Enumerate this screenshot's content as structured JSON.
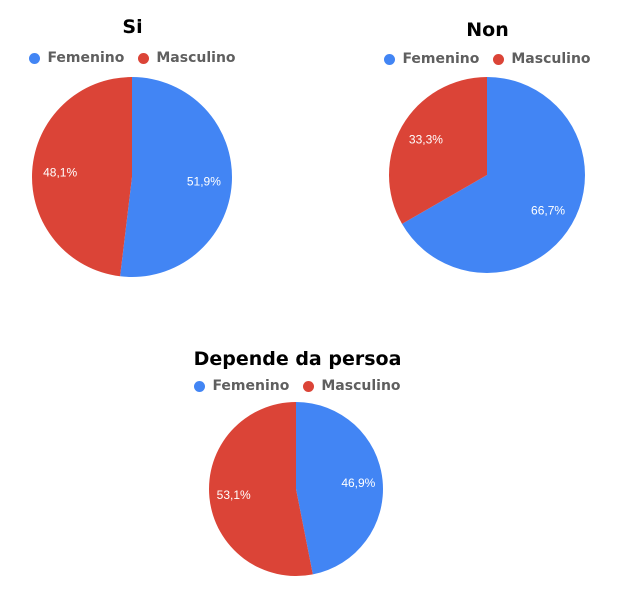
{
  "chart_data": [
    {
      "type": "pie",
      "title": "Si",
      "categories": [
        "Femenino",
        "Masculino"
      ],
      "values": [
        51.9,
        48.1
      ],
      "labels": [
        "51,9%",
        "48,1%"
      ],
      "colors": [
        "#4285f4",
        "#db4437"
      ],
      "legend": "top"
    },
    {
      "type": "pie",
      "title": "Non",
      "categories": [
        "Femenino",
        "Masculino"
      ],
      "values": [
        66.7,
        33.3
      ],
      "labels": [
        "66,7%",
        "33,3%"
      ],
      "colors": [
        "#4285f4",
        "#db4437"
      ],
      "legend": "top"
    },
    {
      "type": "pie",
      "title": "Depende da persoa",
      "categories": [
        "Femenino",
        "Masculino"
      ],
      "values": [
        46.9,
        53.1
      ],
      "labels": [
        "46,9%",
        "53,1%"
      ],
      "colors": [
        "#4285f4",
        "#db4437"
      ],
      "legend": "top"
    }
  ]
}
